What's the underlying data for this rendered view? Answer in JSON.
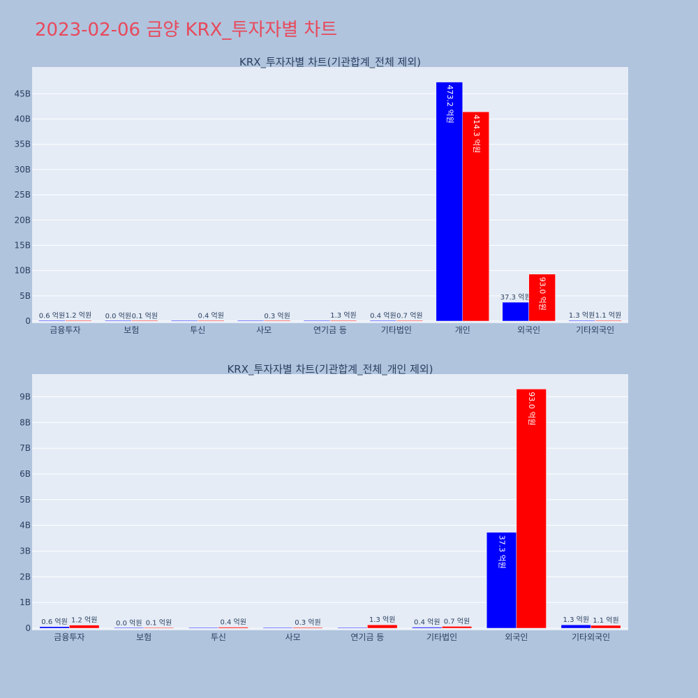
{
  "title": "2023-02-06 금양 KRX_투자자별 차트",
  "colors": {
    "buy": "#0000ff",
    "sell": "#ff0000",
    "background": "#b0c4de",
    "plot_bg": "#e5ecf6",
    "title": "#e8495b"
  },
  "chart_data": [
    {
      "type": "bar",
      "title": "KRX_투자자별 차트(기관합계_전체 제외)",
      "categories": [
        "금융투자",
        "보험",
        "투신",
        "사모",
        "연기금 등",
        "기타법인",
        "개인",
        "외국인",
        "기타외국인"
      ],
      "series": [
        {
          "color": "#0000ff",
          "values": [
            0.06,
            0.0,
            0,
            0,
            0,
            0.04,
            47.32,
            3.73,
            0.13
          ],
          "labels": [
            "0.6 억원",
            "0.0 억원",
            "",
            "",
            "",
            "0.4 억원",
            "473.2 억원",
            "37.3 억원",
            "1.3 억원"
          ]
        },
        {
          "color": "#ff0000",
          "values": [
            0.12,
            0.01,
            0.04,
            0.03,
            0.13,
            0.07,
            41.43,
            9.3,
            0.11
          ],
          "labels": [
            "1.2 억원",
            "0.1 억원",
            "0.4 억원",
            "0.3 억원",
            "1.3 억원",
            "0.7 억원",
            "414.3 억원",
            "93.0 억원",
            "1.1 억원"
          ]
        }
      ],
      "yticks": [
        "0",
        "5B",
        "10B",
        "15B",
        "20B",
        "25B",
        "30B",
        "35B",
        "40B",
        "45B"
      ],
      "ylim": [
        0,
        50.3
      ],
      "ytick_step": 5
    },
    {
      "type": "bar",
      "title": "KRX_투자자별 차트(기관합계_전체_개인 제외)",
      "categories": [
        "금융투자",
        "보험",
        "투신",
        "사모",
        "연기금 등",
        "기타법인",
        "외국인",
        "기타외국인"
      ],
      "series": [
        {
          "color": "#0000ff",
          "values": [
            0.06,
            0.0,
            0,
            0,
            0,
            0.04,
            3.73,
            0.13
          ],
          "labels": [
            "0.6 억원",
            "0.0 억원",
            "",
            "",
            "",
            "0.4 억원",
            "37.3 억원",
            "1.3 억원"
          ]
        },
        {
          "color": "#ff0000",
          "values": [
            0.12,
            0.01,
            0.04,
            0.03,
            0.13,
            0.07,
            9.3,
            0.11
          ],
          "labels": [
            "1.2 억원",
            "0.1 억원",
            "0.4 억원",
            "0.3 억원",
            "1.3 억원",
            "0.7 억원",
            "93.0 억원",
            "1.1 억원"
          ]
        }
      ],
      "yticks": [
        "0",
        "1B",
        "2B",
        "3B",
        "4B",
        "5B",
        "6B",
        "7B",
        "8B",
        "9B"
      ],
      "ylim": [
        0,
        9.88
      ],
      "ytick_step": 1
    }
  ]
}
